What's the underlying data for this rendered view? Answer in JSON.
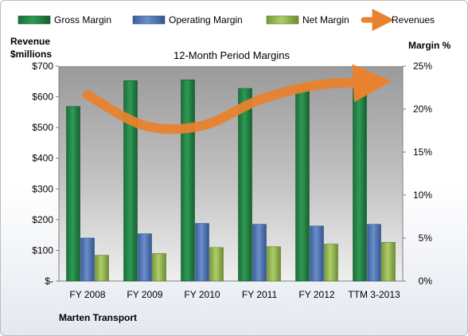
{
  "chart_data": {
    "type": "bar",
    "title": "12-Month Period Margins",
    "left_axis_title": [
      "Revenue",
      "$millions"
    ],
    "right_axis_title": "Margin %",
    "footer_label": "Marten Transport",
    "categories": [
      "FY 2008",
      "FY 2009",
      "FY 2010",
      "FY 2011",
      "FY 2012",
      "TTM 3-2013"
    ],
    "left_ticks": [
      "$-",
      "$100",
      "$200",
      "$300",
      "$400",
      "$500",
      "$600",
      "$700"
    ],
    "right_ticks": [
      "0%",
      "5%",
      "10%",
      "15%",
      "20%",
      "25%"
    ],
    "ylim_left": [
      0,
      700
    ],
    "ylim_right": [
      0,
      25
    ],
    "series": [
      {
        "name": "Gross Margin",
        "axis": "right",
        "color": "#1f7a3e",
        "values": [
          20.3,
          23.3,
          23.4,
          22.4,
          22.3,
          22.4
        ]
      },
      {
        "name": "Operating Margin",
        "axis": "right",
        "color": "#4a6fb0",
        "values": [
          5.0,
          5.5,
          6.7,
          6.6,
          6.4,
          6.6
        ]
      },
      {
        "name": "Net Margin",
        "axis": "right",
        "color": "#8fb04a",
        "values": [
          3.0,
          3.2,
          3.9,
          4.0,
          4.3,
          4.5
        ]
      },
      {
        "name": "Revenues",
        "axis": "left",
        "type": "line",
        "color": "#e8822e",
        "values": [
          606,
          506,
          506,
          590,
          638,
          648
        ]
      }
    ],
    "legend": [
      "Gross Margin",
      "Operating Margin",
      "Net Margin",
      "Revenues"
    ],
    "legend_position": "top",
    "grid": false
  }
}
